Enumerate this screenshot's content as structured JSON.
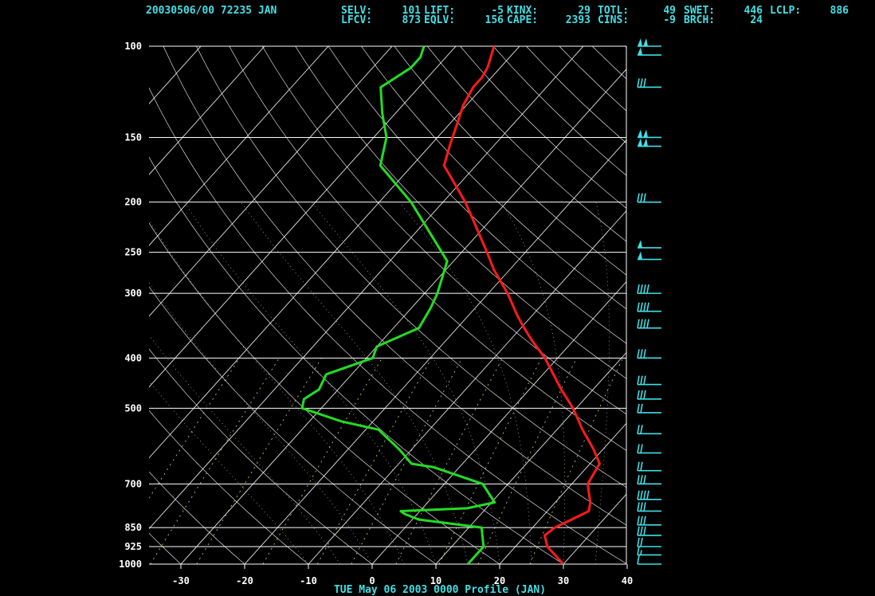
{
  "header": {
    "station": "20030506/00 72235  JAN",
    "line1": [
      {
        "label": "SELV:",
        "value": "101"
      },
      {
        "label": "LIFT:",
        "value": "-5"
      },
      {
        "label": "KINX:",
        "value": "29"
      },
      {
        "label": "TOTL:",
        "value": "49"
      },
      {
        "label": "SWET:",
        "value": "446"
      },
      {
        "label": "LCLP:",
        "value": "886"
      }
    ],
    "line2": [
      {
        "label": "LFCV:",
        "value": "873"
      },
      {
        "label": "EQLV:",
        "value": "156"
      },
      {
        "label": "CAPE:",
        "value": "2393"
      },
      {
        "label": "CINS:",
        "value": "-9"
      },
      {
        "label": "BRCH:",
        "value": "24"
      }
    ]
  },
  "footer": {
    "title": "TUE May 06 2003 0000 Profile (JAN)"
  },
  "colors": {
    "background": "#000000",
    "temperature": "#ff1a1a",
    "dewpoint": "#22dd22",
    "wind_barbs": "#3fe0e6",
    "labels": "#3fe0e6",
    "grid": "#ffffff"
  },
  "chart_data": {
    "type": "skew-T log-P",
    "pressure_ticks": [
      "100",
      "150",
      "200",
      "250",
      "300",
      "400",
      "500",
      "700",
      "850",
      "925",
      "1000"
    ],
    "pressure_values": [
      100,
      150,
      200,
      250,
      300,
      400,
      500,
      700,
      850,
      925,
      1000
    ],
    "temperature_ticks": [
      "-30",
      "-20",
      "-10",
      "0",
      "10",
      "20",
      "30",
      "40"
    ],
    "temperature_values": [
      -30,
      -20,
      -10,
      0,
      10,
      20,
      30,
      40
    ],
    "xlim": [
      -37,
      40
    ],
    "ylim": [
      1000,
      100
    ],
    "y_scale": "log",
    "series": [
      {
        "key": "temperature",
        "points": [
          [
            1000,
            30
          ],
          [
            925,
            25
          ],
          [
            880,
            23
          ],
          [
            850,
            23.5
          ],
          [
            820,
            25
          ],
          [
            790,
            26.5
          ],
          [
            760,
            25.5
          ],
          [
            720,
            23.5
          ],
          [
            700,
            22.5
          ],
          [
            640,
            21.5
          ],
          [
            600,
            18.5
          ],
          [
            550,
            14
          ],
          [
            500,
            9.5
          ],
          [
            460,
            5
          ],
          [
            400,
            -2
          ],
          [
            370,
            -6.5
          ],
          [
            350,
            -9.5
          ],
          [
            330,
            -12.5
          ],
          [
            300,
            -17
          ],
          [
            270,
            -22.5
          ],
          [
            250,
            -26
          ],
          [
            220,
            -32
          ],
          [
            200,
            -36.5
          ],
          [
            180,
            -42
          ],
          [
            170,
            -45
          ],
          [
            155,
            -47
          ],
          [
            140,
            -49
          ],
          [
            130,
            -50.5
          ],
          [
            120,
            -51.5
          ],
          [
            115,
            -51.5
          ],
          [
            110,
            -52
          ],
          [
            100,
            -54
          ]
        ]
      },
      {
        "key": "dewpoint",
        "points": [
          [
            1000,
            15
          ],
          [
            925,
            15
          ],
          [
            850,
            12
          ],
          [
            820,
            1
          ],
          [
            800,
            -2
          ],
          [
            790,
            -3
          ],
          [
            780,
            7
          ],
          [
            760,
            10.5
          ],
          [
            700,
            6
          ],
          [
            650,
            -4
          ],
          [
            640,
            -8
          ],
          [
            600,
            -12
          ],
          [
            550,
            -18
          ],
          [
            530,
            -25
          ],
          [
            500,
            -33
          ],
          [
            480,
            -34
          ],
          [
            460,
            -33
          ],
          [
            430,
            -34
          ],
          [
            400,
            -29
          ],
          [
            380,
            -30
          ],
          [
            350,
            -26
          ],
          [
            320,
            -27
          ],
          [
            300,
            -28
          ],
          [
            260,
            -31
          ],
          [
            200,
            -45
          ],
          [
            170,
            -55
          ],
          [
            150,
            -58
          ],
          [
            135,
            -62
          ],
          [
            120,
            -66
          ],
          [
            110,
            -64
          ],
          [
            105,
            -64
          ],
          [
            100,
            -65
          ]
        ]
      }
    ],
    "wind_barbs": [
      {
        "p": 100,
        "speed": 100
      },
      {
        "p": 104,
        "speed": 50
      },
      {
        "p": 120,
        "speed": 30
      },
      {
        "p": 150,
        "speed": 100
      },
      {
        "p": 156,
        "speed": 100
      },
      {
        "p": 200,
        "speed": 30
      },
      {
        "p": 245,
        "speed": 50
      },
      {
        "p": 258,
        "speed": 50
      },
      {
        "p": 300,
        "speed": 40
      },
      {
        "p": 325,
        "speed": 40
      },
      {
        "p": 350,
        "speed": 40
      },
      {
        "p": 400,
        "speed": 30
      },
      {
        "p": 450,
        "speed": 30
      },
      {
        "p": 480,
        "speed": 30
      },
      {
        "p": 510,
        "speed": 20
      },
      {
        "p": 560,
        "speed": 20
      },
      {
        "p": 610,
        "speed": 20
      },
      {
        "p": 660,
        "speed": 20
      },
      {
        "p": 700,
        "speed": 30
      },
      {
        "p": 750,
        "speed": 40
      },
      {
        "p": 790,
        "speed": 30
      },
      {
        "p": 840,
        "speed": 30
      },
      {
        "p": 880,
        "speed": 30
      },
      {
        "p": 925,
        "speed": 20
      },
      {
        "p": 960,
        "speed": 15
      },
      {
        "p": 1000,
        "speed": 10
      }
    ]
  }
}
